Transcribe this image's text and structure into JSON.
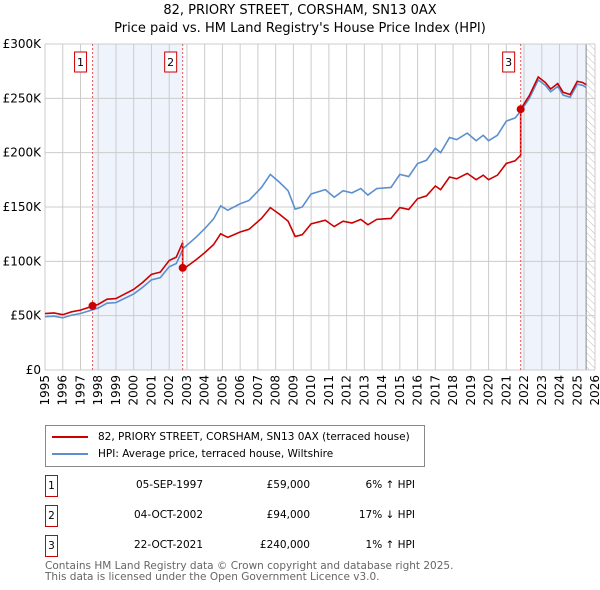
{
  "chart_data": {
    "type": "line",
    "title": "82, PRIORY STREET, CORSHAM, SN13 0AX",
    "subtitle": "Price paid vs. HM Land Registry's House Price Index (HPI)",
    "xlim": [
      1995,
      2026
    ],
    "ylim": [
      0,
      300000
    ],
    "y_ticks": [
      0,
      50000,
      100000,
      150000,
      200000,
      250000,
      300000
    ],
    "y_tick_labels": [
      "£0",
      "£50K",
      "£100K",
      "£150K",
      "£200K",
      "£250K",
      "£300K"
    ],
    "x_ticks": [
      "1995",
      "1996",
      "1997",
      "1998",
      "1999",
      "2000",
      "2001",
      "2002",
      "2003",
      "2004",
      "2005",
      "2006",
      "2007",
      "2008",
      "2009",
      "2010",
      "2011",
      "2012",
      "2013",
      "2014",
      "2015",
      "2016",
      "2017",
      "2018",
      "2019",
      "2020",
      "2021",
      "2022",
      "2023",
      "2024",
      "2025",
      "2026"
    ],
    "grid": true,
    "legend_placement": "below",
    "colors": {
      "property": "#cc0000",
      "hpi": "#5b8fd0",
      "shade": "#eef3fc"
    },
    "series": [
      {
        "name": "82, PRIORY STREET, CORSHAM, SN13 0AX (terraced house)",
        "derived_from_hpi_and_sales": true
      },
      {
        "name": "HPI: Average price, terraced house, Wiltshire",
        "x": [
          1995,
          1995.5,
          1996,
          1996.5,
          1997,
          1997.7,
          1998,
          1998.5,
          1999,
          1999.5,
          2000,
          2000.5,
          2001,
          2001.5,
          2002,
          2002.4,
          2002.8,
          2003.5,
          2004,
          2004.5,
          2004.9,
          2005.3,
          2006,
          2006.5,
          2007.2,
          2007.7,
          2008.2,
          2008.7,
          2009.1,
          2009.5,
          2010,
          2010.8,
          2011.3,
          2011.8,
          2012.3,
          2012.8,
          2013.2,
          2013.7,
          2014.5,
          2015,
          2015.5,
          2016,
          2016.5,
          2017,
          2017.3,
          2017.8,
          2018.2,
          2018.8,
          2019.3,
          2019.7,
          2020,
          2020.5,
          2021,
          2021.5,
          2021.8,
          2022.3,
          2022.8,
          2023.2,
          2023.5,
          2023.9,
          2024.2,
          2024.6,
          2025,
          2025.3,
          2025.5
        ],
        "y": [
          49000,
          49500,
          48000,
          50500,
          52000,
          55500,
          57000,
          61500,
          62000,
          66000,
          70000,
          76000,
          83000,
          85000,
          95000,
          98000,
          112000,
          122000,
          130000,
          139000,
          151000,
          147000,
          153000,
          156000,
          168000,
          180000,
          173000,
          165000,
          148000,
          150000,
          162000,
          166000,
          159000,
          165000,
          163000,
          167000,
          161000,
          167000,
          168000,
          180000,
          178000,
          190000,
          193000,
          204000,
          200000,
          214000,
          212000,
          218000,
          211000,
          216000,
          211000,
          216000,
          229000,
          232000,
          238000,
          250000,
          267000,
          262000,
          256000,
          261000,
          253000,
          251000,
          263000,
          262000,
          260000
        ]
      }
    ],
    "sales": [
      {
        "num": "1",
        "x": 1997.68,
        "price": 59000,
        "date": "05-SEP-1997",
        "price_label": "£59,000",
        "hpi_label": "6% ↑ HPI",
        "ratio": 1.06
      },
      {
        "num": "2",
        "x": 2002.76,
        "price": 94000,
        "date": "04-OCT-2002",
        "price_label": "£94,000",
        "hpi_label": "17% ↓ HPI",
        "ratio": 0.83
      },
      {
        "num": "3",
        "x": 2021.81,
        "price": 240000,
        "date": "22-OCT-2021",
        "price_label": "£240,000",
        "hpi_label": "1% ↑ HPI",
        "ratio": 1.01
      }
    ],
    "data_end": 2025.5
  },
  "footer": {
    "line1": "Contains HM Land Registry data © Crown copyright and database right 2025.",
    "line2": "This data is licensed under the Open Government Licence v3.0."
  }
}
